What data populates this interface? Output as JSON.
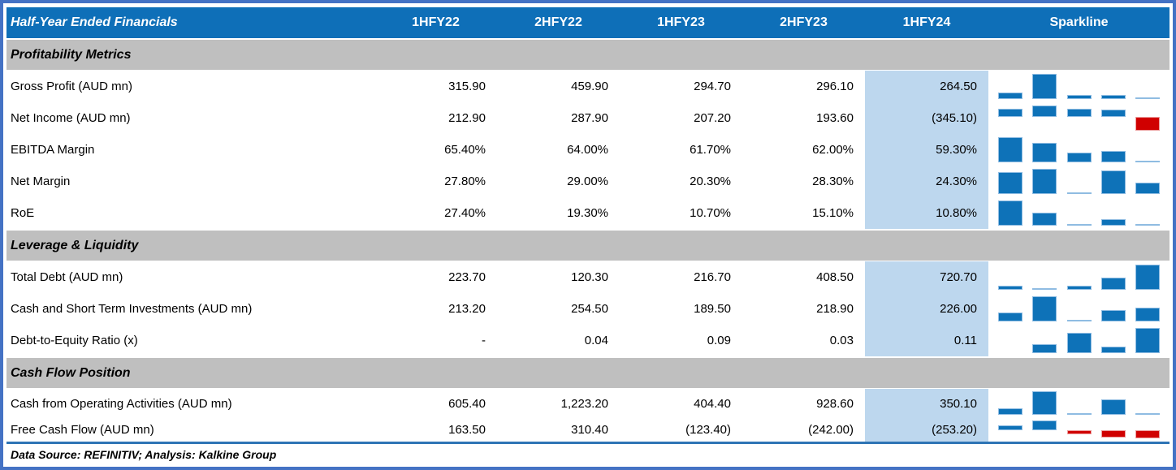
{
  "header": {
    "title": "Half-Year Ended Financials",
    "spark_label": "Sparkline"
  },
  "footer": {
    "note": "Data Source: REFINITIV; Analysis: Kalkine Group"
  },
  "colors": {
    "header_bg": "#0E6FB8",
    "section_bg": "#BFBFBF",
    "highlight_bg": "#BDD7EE",
    "frame_border": "#4472C4",
    "sparkline_positive": "#0E72B8",
    "sparkline_negative": "#D00000",
    "rule": "#2E74B5"
  },
  "chart_data": {
    "type": "table",
    "title": "Half-Year Ended Financials",
    "columns": [
      "1HFY22",
      "2HFY22",
      "1HFY23",
      "2HFY23",
      "1HFY24"
    ],
    "highlighted_column": "1HFY24",
    "sparkline_style": "per-row mini bar chart, auto-scaled min/max, negative values shown red below axis",
    "sections": [
      {
        "title": "Profitability Metrics",
        "rows": [
          {
            "label": "Gross Profit (AUD mn)",
            "display": [
              "315.90",
              "459.90",
              "294.70",
              "296.10",
              "264.50"
            ],
            "series": [
              315.9,
              459.9,
              294.7,
              296.1,
              264.5
            ]
          },
          {
            "label": "Net Income (AUD mn)",
            "display": [
              "212.90",
              "287.90",
              "207.20",
              "193.60",
              "(345.10)"
            ],
            "series": [
              212.9,
              287.9,
              207.2,
              193.6,
              -345.1
            ]
          },
          {
            "label": "EBITDA Margin",
            "display": [
              "65.40%",
              "64.00%",
              "61.70%",
              "62.00%",
              "59.30%"
            ],
            "series": [
              65.4,
              64.0,
              61.7,
              62.0,
              59.3
            ]
          },
          {
            "label": "Net Margin",
            "display": [
              "27.80%",
              "29.00%",
              "20.30%",
              "28.30%",
              "24.30%"
            ],
            "series": [
              27.8,
              29.0,
              20.3,
              28.3,
              24.3
            ]
          },
          {
            "label": "RoE",
            "display": [
              "27.40%",
              "19.30%",
              "10.70%",
              "15.10%",
              "10.80%"
            ],
            "series": [
              27.4,
              19.3,
              10.7,
              15.1,
              10.8
            ]
          }
        ]
      },
      {
        "title": "Leverage & Liquidity",
        "rows": [
          {
            "label": "Total Debt (AUD mn)",
            "display": [
              "223.70",
              "120.30",
              "216.70",
              "408.50",
              "720.70"
            ],
            "series": [
              223.7,
              120.3,
              216.7,
              408.5,
              720.7
            ]
          },
          {
            "label": "Cash and Short Term Investments (AUD mn)",
            "display": [
              "213.20",
              "254.50",
              "189.50",
              "218.90",
              "226.00"
            ],
            "series": [
              213.2,
              254.5,
              189.5,
              218.9,
              226.0
            ]
          },
          {
            "label": "Debt-to-Equity Ratio (x)",
            "display": [
              "-",
              "0.04",
              "0.09",
              "0.03",
              "0.11"
            ],
            "series": [
              null,
              0.04,
              0.09,
              0.03,
              0.11
            ]
          }
        ]
      },
      {
        "title": "Cash Flow Position",
        "rows": [
          {
            "label": "Cash from Operating Activities (AUD mn)",
            "display": [
              "605.40",
              "1,223.20",
              "404.40",
              "928.60",
              "350.10"
            ],
            "series": [
              605.4,
              1223.2,
              404.4,
              928.6,
              350.1
            ],
            "size": "short"
          },
          {
            "label": "Free Cash Flow (AUD mn)",
            "display": [
              "163.50",
              "310.40",
              "(123.40)",
              "(242.00)",
              "(253.20)"
            ],
            "series": [
              163.5,
              310.4,
              -123.4,
              -242.0,
              -253.2
            ],
            "size": "shorter"
          }
        ]
      }
    ]
  }
}
